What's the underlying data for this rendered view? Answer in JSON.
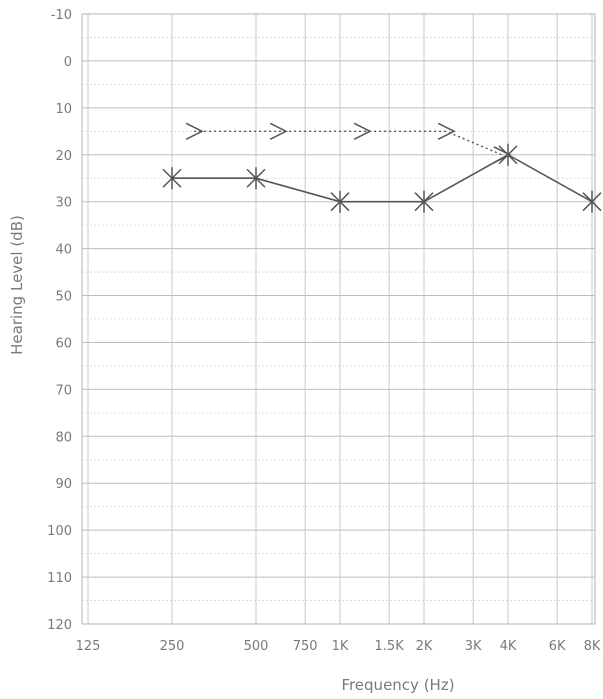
{
  "chart_data": {
    "type": "line",
    "title": "",
    "xlabel": "Frequency (Hz)",
    "ylabel": "Hearing Level (dB)",
    "x_scale": "log (octave / half-octave)",
    "y_inverted": true,
    "ylim": [
      -10,
      120
    ],
    "grid": true,
    "x_ticks": [
      "125",
      "250",
      "500",
      "750",
      "1K",
      "1.5K",
      "2K",
      "3K",
      "4K",
      "6K",
      "8K"
    ],
    "x_tick_hz": [
      125,
      250,
      500,
      750,
      1000,
      1500,
      2000,
      3000,
      4000,
      6000,
      8000
    ],
    "y_ticks": [
      "-10",
      "0",
      "10",
      "20",
      "30",
      "40",
      "50",
      "60",
      "70",
      "80",
      "90",
      "100",
      "110",
      "120"
    ],
    "y_tick_values": [
      -10,
      0,
      10,
      20,
      30,
      40,
      50,
      60,
      70,
      80,
      90,
      100,
      110,
      120
    ],
    "series": [
      {
        "marker": "X",
        "line": "solid",
        "x": [
          250,
          500,
          1000,
          2000,
          4000,
          8000
        ],
        "y": [
          25,
          25,
          30,
          30,
          20,
          30
        ]
      },
      {
        "marker": ">",
        "line": "dotted",
        "x": [
          300,
          600,
          1200,
          2400,
          3800
        ],
        "y": [
          15,
          15,
          15,
          15,
          20
        ]
      }
    ],
    "colors": {
      "axis": "#7a7a7a",
      "grid": "#c4c4c4",
      "series": "#555555"
    }
  }
}
